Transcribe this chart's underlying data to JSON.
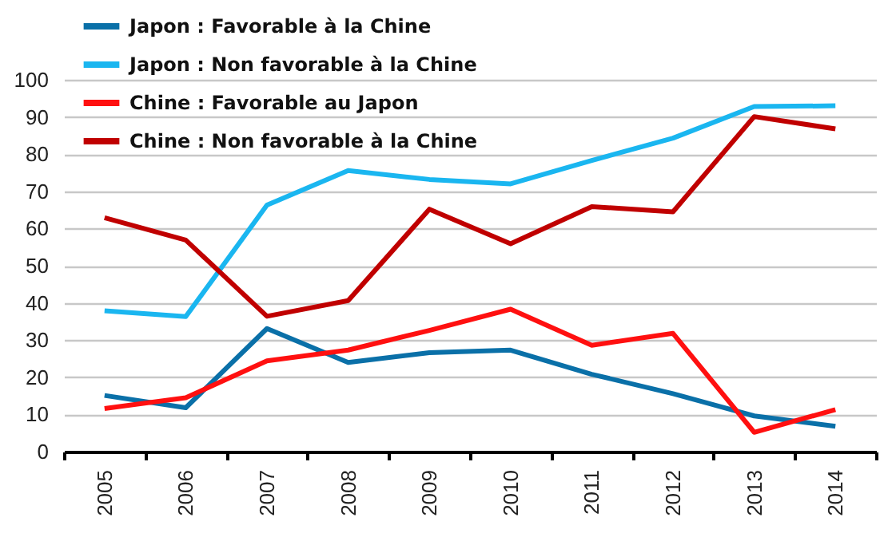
{
  "chart_data": {
    "type": "line",
    "categories": [
      "2005",
      "2006",
      "2007",
      "2008",
      "2009",
      "2010",
      "2011",
      "2012",
      "2013",
      "2014"
    ],
    "series": [
      {
        "name": "Japon : Favorable à la Chine",
        "color": "#0a70a8",
        "values": [
          15.1,
          11.8,
          33.1,
          24.0,
          26.6,
          27.3,
          20.8,
          15.6,
          9.6,
          6.8
        ]
      },
      {
        "name": "Japon : Non favorable à la Chine",
        "color": "#1ab6f0",
        "values": [
          37.9,
          36.3,
          66.3,
          75.6,
          73.2,
          72.0,
          78.3,
          84.3,
          92.8,
          93.0
        ]
      },
      {
        "name": "Chine : Favorable au Japon",
        "color": "#ff1010",
        "values": [
          11.6,
          14.5,
          24.4,
          27.3,
          32.6,
          38.3,
          28.6,
          31.8,
          5.2,
          11.3
        ]
      },
      {
        "name": "Chine : Non favorable à la Chine",
        "color": "#c00000",
        "values": [
          62.9,
          56.9,
          36.4,
          40.6,
          65.2,
          55.9,
          65.9,
          64.5,
          90.1,
          86.8
        ]
      }
    ],
    "ylim": [
      0,
      100
    ],
    "yticks": [
      0,
      10,
      20,
      30,
      40,
      50,
      60,
      70,
      80,
      90,
      100
    ],
    "grid": "y",
    "legend": "top left",
    "marker": "none",
    "line_style": "solid"
  }
}
